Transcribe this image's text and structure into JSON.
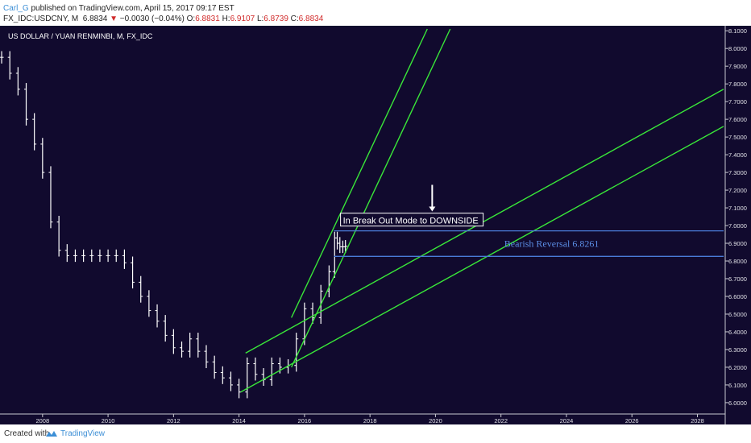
{
  "header": {
    "author": "Carl_G",
    "published_text": "published on TradingView.com, April 15, 2017 09:17 EST",
    "symbol": "FX_IDC:USDCNY, M",
    "last_price": "6.8834",
    "change_arrow": "▼",
    "change": "−0.0030 (−0.04%)",
    "o_label": "O:",
    "o_value": "6.8831",
    "h_label": "H:",
    "h_value": "6.9107",
    "l_label": "L:",
    "l_value": "6.8739",
    "c_label": "C:",
    "c_value": "6.8834"
  },
  "footer": {
    "created_with": "Created with",
    "brand": "TradingView"
  },
  "chart_data": {
    "type": "candlestick",
    "title": "US DOLLAR / YUAN RENMINBI, M, FX_IDC",
    "background": "#110a2e",
    "colors": {
      "bars": "#ffffff",
      "channel_lines": "#39e639",
      "levels": "#4a7bd8",
      "annotation": "#5b8ee6"
    },
    "x_ticks": [
      "2008",
      "2010",
      "2012",
      "2014",
      "2016",
      "2018",
      "2020",
      "2022",
      "2024",
      "2026",
      "2028"
    ],
    "y_ticks": [
      "8.1000",
      "8.0000",
      "7.9000",
      "7.8000",
      "7.7000",
      "7.6000",
      "7.5000",
      "7.4000",
      "7.3000",
      "7.2000",
      "7.1000",
      "7.0000",
      "6.9000",
      "6.8000",
      "6.7000",
      "6.6000",
      "6.5000",
      "6.4000",
      "6.3000",
      "6.2000",
      "6.1000",
      "6.0000"
    ],
    "xlim": [
      2006.7,
      2028.8
    ],
    "ylim": [
      5.945,
      8.11
    ],
    "series": [
      {
        "points": [
          [
            2006.75,
            7.95
          ],
          [
            2007.0,
            7.86
          ],
          [
            2007.25,
            7.77
          ],
          [
            2007.5,
            7.6
          ],
          [
            2007.75,
            7.46
          ],
          [
            2008.0,
            7.3
          ],
          [
            2008.25,
            7.02
          ],
          [
            2008.5,
            6.86
          ],
          [
            2008.75,
            6.83
          ],
          [
            2009.0,
            6.83
          ],
          [
            2009.25,
            6.83
          ],
          [
            2009.5,
            6.83
          ],
          [
            2009.75,
            6.83
          ],
          [
            2010.0,
            6.83
          ],
          [
            2010.25,
            6.83
          ],
          [
            2010.5,
            6.79
          ],
          [
            2010.75,
            6.68
          ],
          [
            2011.0,
            6.6
          ],
          [
            2011.25,
            6.52
          ],
          [
            2011.5,
            6.46
          ],
          [
            2011.75,
            6.38
          ],
          [
            2012.0,
            6.31
          ],
          [
            2012.25,
            6.29
          ],
          [
            2012.5,
            6.36
          ],
          [
            2012.75,
            6.29
          ],
          [
            2013.0,
            6.23
          ],
          [
            2013.25,
            6.17
          ],
          [
            2013.5,
            6.14
          ],
          [
            2013.75,
            6.1
          ],
          [
            2014.0,
            6.06
          ],
          [
            2014.25,
            6.22
          ],
          [
            2014.5,
            6.16
          ],
          [
            2014.75,
            6.13
          ],
          [
            2015.0,
            6.22
          ],
          [
            2015.25,
            6.2
          ],
          [
            2015.5,
            6.21
          ],
          [
            2015.75,
            6.36
          ],
          [
            2016.0,
            6.53
          ],
          [
            2016.25,
            6.48
          ],
          [
            2016.5,
            6.63
          ],
          [
            2016.75,
            6.74
          ],
          [
            2016.92,
            6.93
          ],
          [
            2017.0,
            6.9
          ],
          [
            2017.08,
            6.88
          ],
          [
            2017.17,
            6.88
          ],
          [
            2017.25,
            6.8834
          ]
        ]
      }
    ],
    "channels": [
      {
        "name": "steep",
        "lines": [
          [
            [
              2015.6,
              6.48
            ],
            [
              2019.75,
              8.11
            ]
          ],
          [
            [
              2015.6,
              6.2
            ],
            [
              2020.45,
              8.11
            ]
          ]
        ]
      },
      {
        "name": "mid",
        "lines": [
          [
            [
              2014.2,
              6.28
            ],
            [
              2028.8,
              7.77
            ]
          ],
          [
            [
              2014.05,
              6.06
            ],
            [
              2028.8,
              7.56
            ]
          ]
        ]
      }
    ],
    "levels": [
      6.97,
      6.826
    ],
    "level_start": 2016.9,
    "annotations": [
      {
        "text": "In Break Out Mode to DOWNSIDE",
        "x": 2017.15,
        "y": 7.02
      },
      {
        "text": "Bearish Reversal 6.8261",
        "x": 2022.1,
        "y": 6.88
      }
    ],
    "arrow": {
      "x": 2019.9,
      "y_from": 7.23,
      "y_to": 7.08
    }
  }
}
